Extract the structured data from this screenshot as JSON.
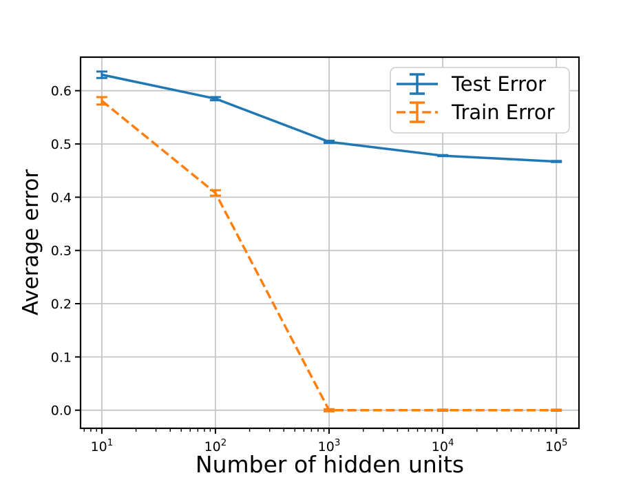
{
  "chart_data": {
    "type": "line",
    "title": "",
    "xlabel": "Number of hidden units",
    "ylabel": "Average error",
    "x_scale": "log10",
    "x": [
      10,
      100,
      1000,
      10000,
      100000
    ],
    "series": [
      {
        "name": "Test Error",
        "color": "#1f77b4",
        "line_style": "solid",
        "values": [
          0.63,
          0.585,
          0.504,
          0.478,
          0.467
        ],
        "yerr": [
          0.006,
          0.003,
          0.002,
          0.001,
          0.001
        ]
      },
      {
        "name": "Train Error",
        "color": "#ff7f0e",
        "line_style": "dashed",
        "values": [
          0.581,
          0.408,
          0.0,
          0.0,
          0.0
        ],
        "yerr": [
          0.007,
          0.005,
          0.002,
          0.001,
          0.001
        ]
      }
    ],
    "x_ticks": [
      {
        "log10": 1,
        "base": "10",
        "exp": "1"
      },
      {
        "log10": 2,
        "base": "10",
        "exp": "2"
      },
      {
        "log10": 3,
        "base": "10",
        "exp": "3"
      },
      {
        "log10": 4,
        "base": "10",
        "exp": "4"
      },
      {
        "log10": 5,
        "base": "10",
        "exp": "5"
      }
    ],
    "y_ticks": [
      0.0,
      0.1,
      0.2,
      0.3,
      0.4,
      0.5,
      0.6
    ],
    "y_tick_labels": [
      "0.0",
      "0.1",
      "0.2",
      "0.3",
      "0.4",
      "0.5",
      "0.6"
    ],
    "xlim_log10": [
      0.813,
      5.199
    ],
    "ylim": [
      -0.034,
      0.663
    ],
    "grid": true,
    "legend": {
      "position": "upper right",
      "entries": [
        "Test Error",
        "Train Error"
      ]
    },
    "colors": {
      "background": "#ffffff",
      "grid": "#c6c6c6",
      "spine": "#000000",
      "tick": "#000000",
      "legend_border": "#cccccc",
      "legend_fill": "#ffffff"
    }
  }
}
